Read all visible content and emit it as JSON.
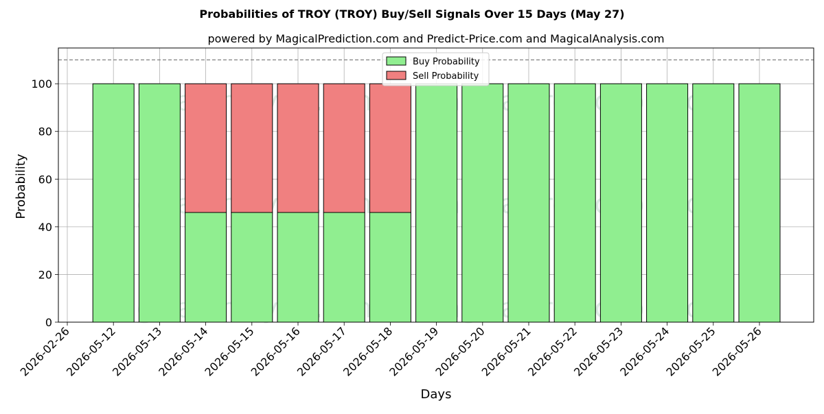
{
  "chart_data": {
    "type": "bar",
    "stacked": true,
    "title": "Probabilities of TROY (TROY) Buy/Sell Signals Over 15 Days (May 27)",
    "subtitle": "powered by MagicalPrediction.com and Predict-Price.com and MagicalAnalysis.com",
    "xlabel": "Days",
    "ylabel": "Probability",
    "ylim": [
      0,
      115
    ],
    "yticks": [
      0,
      20,
      40,
      60,
      80,
      100
    ],
    "reference_line": 110,
    "grid": true,
    "legend_position": "top-center",
    "categories": [
      "2026-05-12",
      "2026-05-13",
      "2026-05-14",
      "2026-05-15",
      "2026-05-16",
      "2026-05-17",
      "2026-05-18",
      "2026-05-19",
      "2026-05-20",
      "2026-05-21",
      "2026-05-22",
      "2026-05-23",
      "2026-05-24",
      "2026-05-25",
      "2026-05-26"
    ],
    "x_tick_labels": [
      "2026-02-26",
      "2026-05-12",
      "2026-05-13",
      "2026-05-14",
      "2026-05-15",
      "2026-05-16",
      "2026-05-17",
      "2026-05-18",
      "2026-05-19",
      "2026-05-20",
      "2026-05-21",
      "2026-05-22",
      "2026-05-23",
      "2026-05-24",
      "2026-05-25",
      "2026-05-26"
    ],
    "series": [
      {
        "name": "Buy Probability",
        "color": "#90ee90",
        "values": [
          100,
          100,
          46,
          46,
          46,
          46,
          46,
          100,
          100,
          100,
          100,
          100,
          100,
          100,
          100
        ]
      },
      {
        "name": "Sell Probability",
        "color": "#f08080",
        "values": [
          0,
          0,
          54,
          54,
          54,
          54,
          54,
          0,
          0,
          0,
          0,
          0,
          0,
          0,
          0
        ]
      }
    ],
    "watermarks": [
      "MagicalAnalysis.com",
      "MagicalPrediction.com"
    ]
  }
}
